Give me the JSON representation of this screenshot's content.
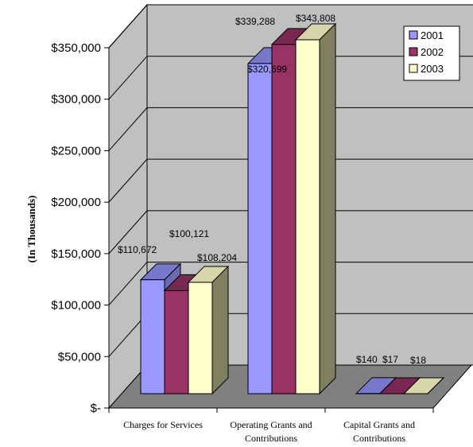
{
  "chart_data": {
    "type": "bar",
    "categories": [
      [
        "Charges for Services"
      ],
      [
        "Operating Grants and",
        "Contributions"
      ],
      [
        "Capital Grants and",
        "Contributions"
      ]
    ],
    "series": [
      {
        "name": "2001",
        "values": [
          110672,
          320699,
          140
        ],
        "labels": [
          "$110,672",
          "$320,699",
          "$140"
        ]
      },
      {
        "name": "2002",
        "values": [
          100121,
          339288,
          17
        ],
        "labels": [
          "$100,121",
          "$339,288",
          "$17"
        ]
      },
      {
        "name": "2003",
        "values": [
          108204,
          343808,
          18
        ],
        "labels": [
          "$108,204",
          "$343,808",
          "$18"
        ]
      }
    ],
    "ylabel": "(In Thousands)",
    "ylim": [
      0,
      350000
    ],
    "yticks": [
      0,
      50000,
      100000,
      150000,
      200000,
      250000,
      300000,
      350000
    ],
    "ytick_labels": [
      "$-",
      "$50,000",
      "$100,000",
      "$150,000",
      "$200,000",
      "$250,000",
      "$300,000",
      "$350,000"
    ],
    "grid": true,
    "legend_position": "top-right",
    "colors": {
      "series": [
        "#9999ff",
        "#993366",
        "#ffffcc"
      ],
      "series_top": [
        "#7777cc",
        "#7a2852",
        "#d6d6aa"
      ],
      "series_side": [
        "#6b6bb3",
        "#6b2447",
        "#808060"
      ],
      "walls": "#c0c0c0",
      "floor": "#808080"
    }
  }
}
